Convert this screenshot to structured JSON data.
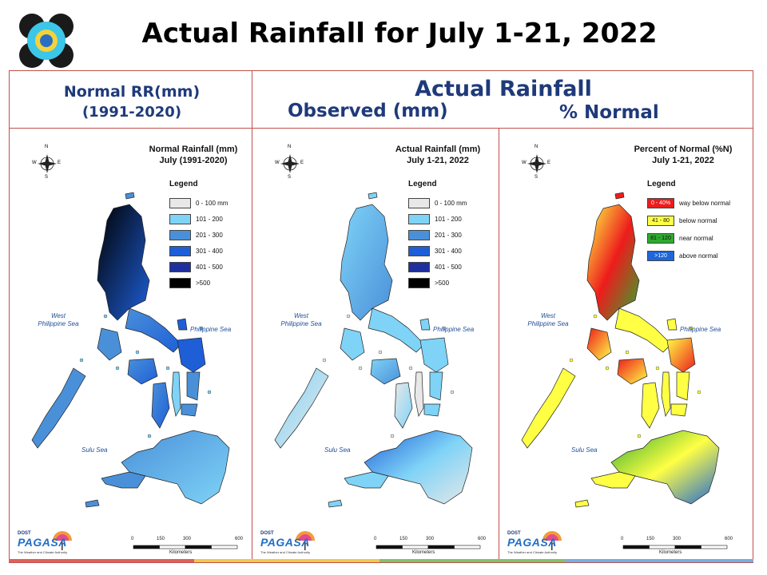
{
  "page": {
    "title": "Actual Rainfall for July 1-21, 2022"
  },
  "header": {
    "left_line1": "Normal RR(mm)",
    "left_line2": "(1991-2020)",
    "center_title": "Actual Rainfall",
    "observed": "Observed (mm)",
    "percent": "% Normal"
  },
  "colors": {
    "frame": "#c0504d",
    "header_text": "#1f3a7a",
    "rain": [
      "#e8e8e8",
      "#7fd3f7",
      "#4a90d9",
      "#1e5fd8",
      "#1f2f9e",
      "#000000"
    ],
    "pn": [
      "#ee1c1c",
      "#ffff44",
      "#2eaa2e",
      "#1f66d8"
    ]
  },
  "panels": [
    {
      "title_line1": "Normal Rainfall (mm)",
      "title_line2": "July (1991-2020)",
      "legend_title": "Legend",
      "legend": [
        "0 - 100 mm",
        "101 - 200",
        "201 - 300",
        "301 - 400",
        "401 - 500",
        ">500"
      ],
      "sea_west": "West\nPhilippine Sea",
      "sea_east": "Philippine Sea",
      "sea_sulu": "Sulu Sea",
      "scale_ticks": [
        "0",
        "150",
        "300",
        "600"
      ],
      "scale_unit": "Kilometers"
    },
    {
      "title_line1": "Actual Rainfall (mm)",
      "title_line2": "July 1-21, 2022",
      "legend_title": "Legend",
      "legend": [
        "0 - 100 mm",
        "101 - 200",
        "201 - 300",
        "301 - 400",
        "401 - 500",
        ">500"
      ],
      "sea_west": "West\nPhilippine Sea",
      "sea_east": "Philippine Sea",
      "sea_sulu": "Sulu Sea",
      "scale_ticks": [
        "0",
        "150",
        "300",
        "600"
      ],
      "scale_unit": "Kilometers"
    },
    {
      "title_line1": "Percent of Normal (%N)",
      "title_line2": "July 1-21, 2022",
      "legend_title": "Legend",
      "legend": [
        {
          "range": "0 - 40%",
          "desc": "way below normal"
        },
        {
          "range": "41 - 80",
          "desc": "below normal"
        },
        {
          "range": "81 - 120",
          "desc": "near normal"
        },
        {
          "range": ">120",
          "desc": "above normal"
        }
      ],
      "sea_west": "West\nPhilippine Sea",
      "sea_east": "Philippine Sea",
      "sea_sulu": "Sulu Sea",
      "scale_ticks": [
        "0",
        "150",
        "300",
        "600"
      ],
      "scale_unit": "Kilometers"
    }
  ],
  "compass": {
    "n": "N",
    "s": "S",
    "e": "E",
    "w": "W"
  },
  "pagasa": {
    "name": "PAGASA",
    "year": "DOST",
    "tagline": "The Weather and Climate Authority"
  }
}
